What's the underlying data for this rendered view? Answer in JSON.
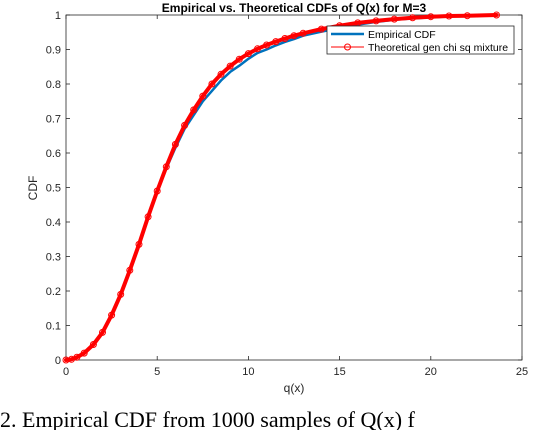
{
  "chart_data": {
    "type": "line",
    "title": "Empirical vs. Theoretical CDFs of Q(x) for M=3",
    "xlabel": "q(x)",
    "ylabel": "CDF",
    "xlim": [
      0,
      25
    ],
    "ylim": [
      0,
      1
    ],
    "xticks": [
      "0",
      "5",
      "10",
      "15",
      "20",
      "25"
    ],
    "yticks": [
      "0",
      "0.1",
      "0.2",
      "0.3",
      "0.4",
      "0.5",
      "0.6",
      "0.7",
      "0.8",
      "0.9",
      "1"
    ],
    "grid": false,
    "legend_position": "top-right",
    "series": [
      {
        "name": "Empirical CDF",
        "color": "#0072BD",
        "style": "line",
        "x": [
          0,
          0.3,
          0.6,
          1,
          1.5,
          2,
          2.5,
          3,
          3.5,
          4,
          4.5,
          5,
          5.5,
          6,
          6.5,
          7,
          7.5,
          8,
          8.5,
          9,
          9.5,
          10,
          10.5,
          11,
          11.5,
          12,
          12.5,
          13,
          14,
          15,
          16,
          17,
          18,
          19,
          20,
          21,
          22,
          23.6
        ],
        "y": [
          0,
          0.002,
          0.008,
          0.02,
          0.045,
          0.08,
          0.13,
          0.19,
          0.26,
          0.335,
          0.415,
          0.49,
          0.555,
          0.615,
          0.67,
          0.71,
          0.75,
          0.78,
          0.81,
          0.835,
          0.853,
          0.873,
          0.89,
          0.9,
          0.912,
          0.922,
          0.93,
          0.94,
          0.952,
          0.962,
          0.972,
          0.98,
          0.986,
          0.99,
          0.993,
          0.996,
          0.998,
          1
        ]
      },
      {
        "name": "Theoretical gen chi sq mixture",
        "color": "#FF0000",
        "style": "line-circle",
        "x": [
          0,
          0.3,
          0.6,
          1,
          1.5,
          2,
          2.5,
          3,
          3.5,
          4,
          4.5,
          5,
          5.5,
          6,
          6.5,
          7,
          7.5,
          8,
          8.5,
          9,
          9.5,
          10,
          10.5,
          11,
          11.5,
          12,
          12.5,
          13,
          14,
          15,
          16,
          17,
          18,
          19,
          20,
          21,
          22,
          23.6
        ],
        "y": [
          0,
          0.002,
          0.008,
          0.02,
          0.045,
          0.08,
          0.13,
          0.19,
          0.26,
          0.335,
          0.415,
          0.49,
          0.56,
          0.625,
          0.68,
          0.725,
          0.765,
          0.8,
          0.828,
          0.852,
          0.872,
          0.888,
          0.902,
          0.913,
          0.923,
          0.932,
          0.94,
          0.947,
          0.959,
          0.969,
          0.977,
          0.983,
          0.988,
          0.992,
          0.995,
          0.997,
          0.998,
          1
        ]
      }
    ]
  },
  "caption": {
    "text": "2. Empirical CDF from 1000 samples of Q(x) f"
  }
}
